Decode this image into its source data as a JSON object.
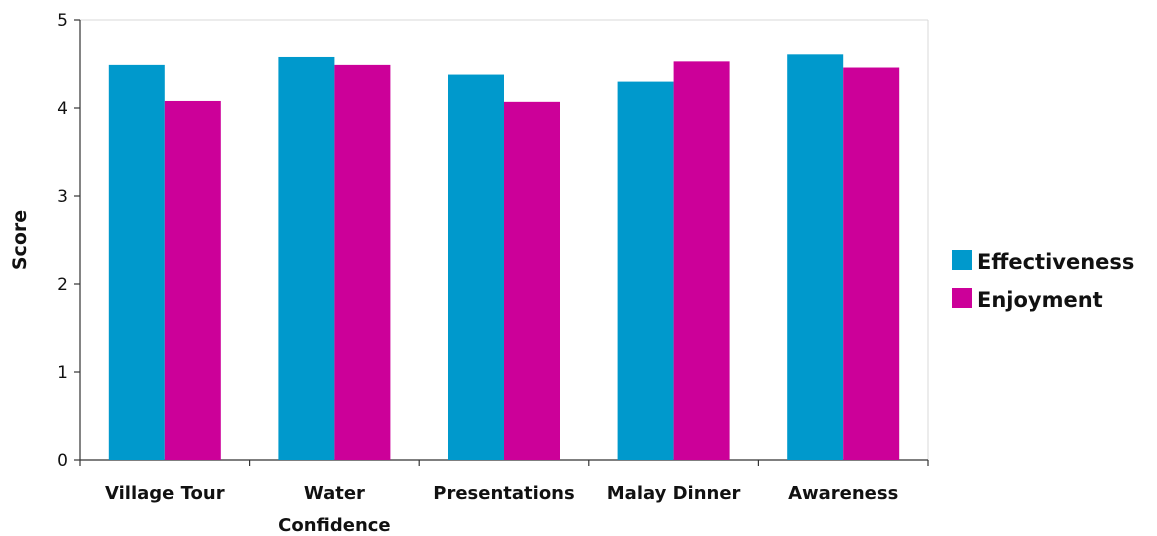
{
  "chart_data": {
    "type": "bar",
    "categories": [
      [
        "Village Tour"
      ],
      [
        "Water",
        "Confidence"
      ],
      [
        "Presentations"
      ],
      [
        "Malay Dinner"
      ],
      [
        "Awareness"
      ]
    ],
    "series": [
      {
        "name": "Effectiveness",
        "color": "#0099cc",
        "values": [
          4.49,
          4.58,
          4.38,
          4.3,
          4.61
        ]
      },
      {
        "name": "Enjoyment",
        "color": "#cc0099",
        "values": [
          4.08,
          4.49,
          4.07,
          4.53,
          4.46
        ]
      }
    ],
    "ylabel": "Score",
    "xlabel": "",
    "ylim": [
      0,
      5
    ],
    "yticks": [
      0,
      1,
      2,
      3,
      4,
      5
    ],
    "grid": false,
    "legend": "right"
  }
}
